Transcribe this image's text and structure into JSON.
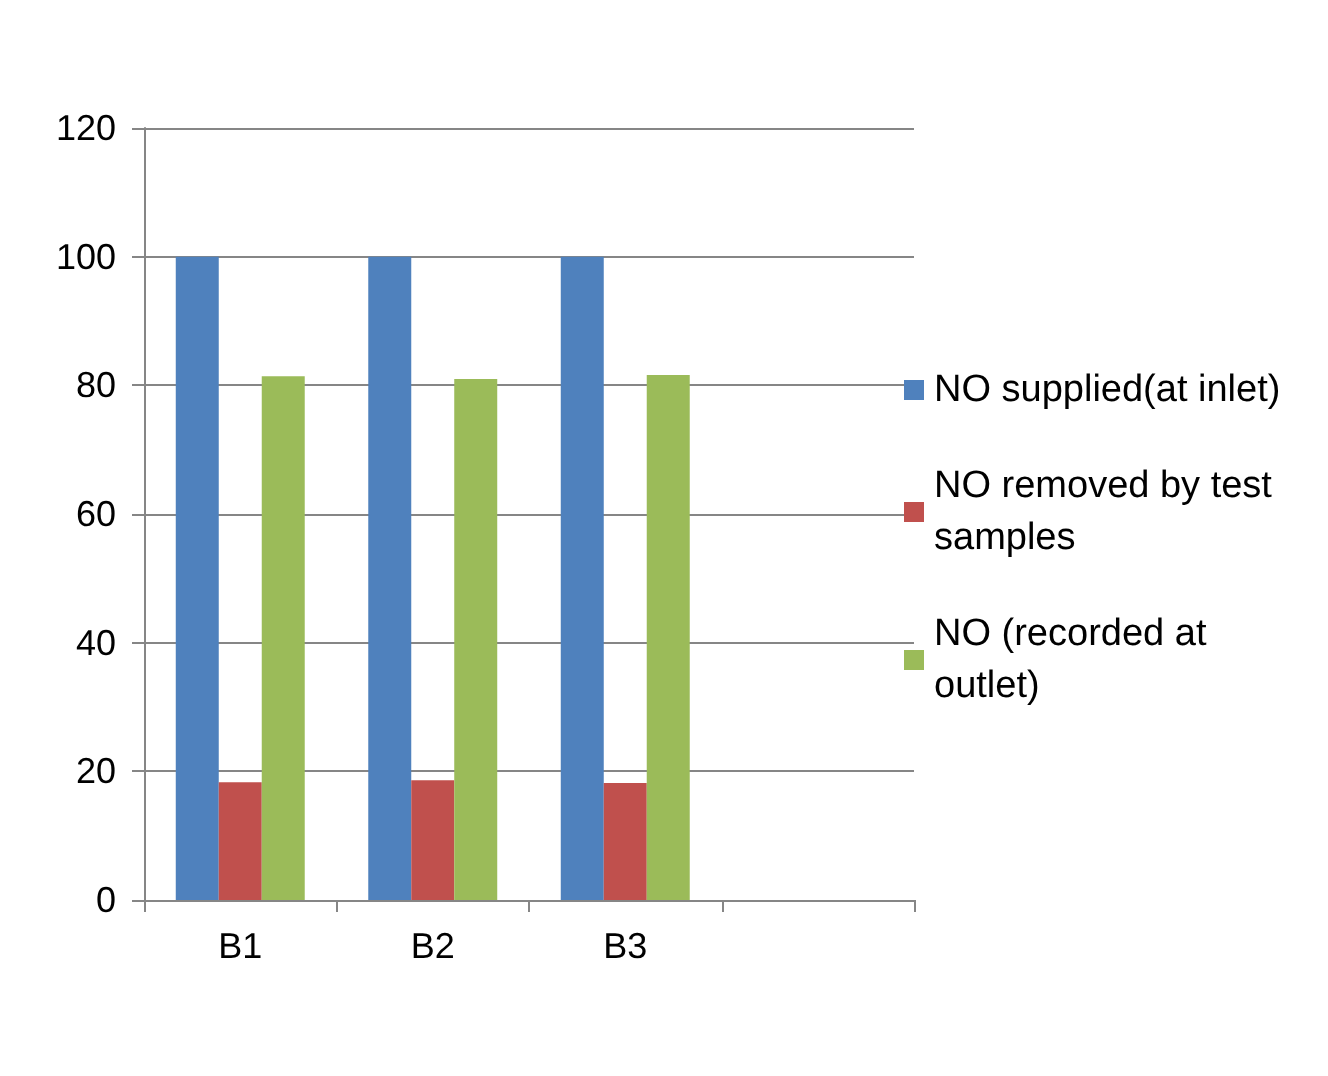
{
  "chart_data": {
    "type": "bar",
    "categories": [
      "B1",
      "B2",
      "B3",
      null
    ],
    "series": [
      {
        "name": "NO supplied(at inlet)",
        "color": "#4f81bd",
        "values": [
          100,
          100,
          100,
          null
        ]
      },
      {
        "name": "NO removed by test samples",
        "color": "#c0504d",
        "values": [
          18.3,
          18.6,
          18.2,
          null
        ]
      },
      {
        "name": "NO (recorded at outlet)",
        "color": "#9bbb59",
        "values": [
          81.4,
          81.0,
          81.6,
          null
        ]
      }
    ],
    "ylim": [
      0,
      120
    ],
    "yticks": [
      0,
      20,
      40,
      60,
      80,
      100,
      120
    ],
    "grid": "y",
    "legend": "right"
  }
}
